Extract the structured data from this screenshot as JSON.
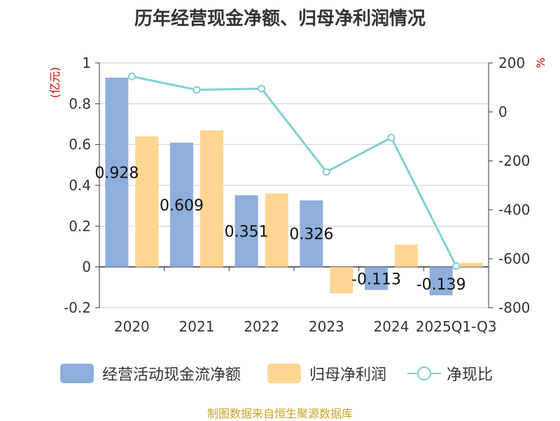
{
  "chart_data": {
    "type": "bar",
    "title": "历年经营现金净额、归母净利润情况",
    "categories": [
      "2020",
      "2021",
      "2022",
      "2023",
      "2024",
      "2025Q1-Q3"
    ],
    "ylabel_left": "(亿元)",
    "ylabel_right": "%",
    "ylim_left": [
      -0.2,
      1
    ],
    "yticks_left": [
      -0.2,
      0,
      0.2,
      0.4,
      0.6,
      0.8,
      1
    ],
    "ylim_right": [
      -800,
      200
    ],
    "yticks_right": [
      -800,
      -600,
      -400,
      -200,
      0,
      200
    ],
    "grid": true,
    "legend_position": "bottom",
    "series": [
      {
        "name": "经营活动现金流净额",
        "kind": "bar",
        "axis": "left",
        "color": "#8eaedc",
        "values": [
          0.928,
          0.609,
          0.351,
          0.326,
          -0.113,
          -0.139
        ],
        "labels": [
          "0.928",
          "0.609",
          "0.351",
          "0.326",
          "-0.113",
          "-0.139"
        ]
      },
      {
        "name": "归母净利润",
        "kind": "bar",
        "axis": "left",
        "color": "#ffd591",
        "values": [
          0.64,
          0.67,
          0.36,
          -0.13,
          0.11,
          0.02
        ]
      },
      {
        "name": "净现比",
        "kind": "line",
        "axis": "right",
        "color": "#7fcfd6",
        "values": [
          145,
          90,
          95,
          -245,
          -105,
          -630
        ]
      }
    ]
  },
  "source_text": "制图数据来自恒生聚源数据库"
}
